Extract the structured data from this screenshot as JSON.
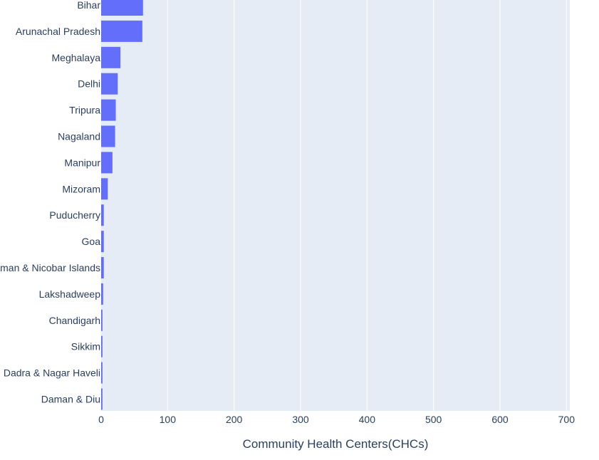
{
  "chart_data": {
    "type": "bar",
    "orientation": "horizontal",
    "categories": [
      "Bihar",
      "Arunachal Pradesh",
      "Meghalaya",
      "Delhi",
      "Tripura",
      "Nagaland",
      "Manipur",
      "Mizoram",
      "Puducherry",
      "Goa",
      "Andaman & Nicobar Islands",
      "Lakshadweep",
      "Chandigarh",
      "Sikkim",
      "Dadra & Nagar Haveli",
      "Daman & Diu"
    ],
    "values": [
      63,
      62,
      29,
      25,
      22,
      21,
      17,
      10,
      4,
      4,
      4,
      3,
      2,
      2,
      2,
      2
    ],
    "xlabel": "Community Health Centers(CHCs)",
    "ylabel": "",
    "xlim": [
      0,
      705
    ],
    "xticks": [
      0,
      100,
      200,
      300,
      400,
      500,
      600,
      700
    ],
    "grid": true,
    "colors": {
      "bar": "#636efa",
      "plot_bg": "#e5ecf6",
      "grid": "#ffffff",
      "text": "#2a3f5f"
    }
  }
}
